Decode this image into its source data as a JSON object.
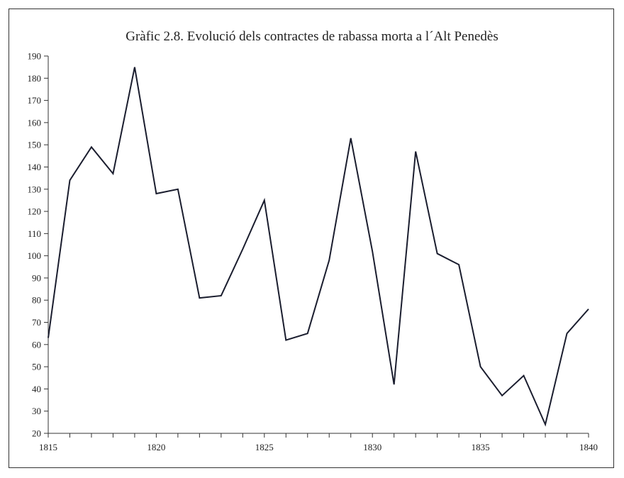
{
  "chart_data": {
    "type": "line",
    "title": "Gràfic 2.8. Evolució dels contractes de rabassa morta a l´Alt Penedès",
    "xlabel": "",
    "ylabel": "",
    "xlim": [
      1815,
      1840
    ],
    "ylim": [
      20,
      190
    ],
    "x_tick_labels": [
      "1815",
      "1820",
      "1825",
      "1830",
      "1835",
      "1840"
    ],
    "y_tick_labels": [
      "20",
      "30",
      "40",
      "50",
      "60",
      "70",
      "80",
      "90",
      "100",
      "110",
      "120",
      "130",
      "140",
      "150",
      "160",
      "170",
      "180",
      "190"
    ],
    "grid": false,
    "line_color": "#1a1d2e",
    "series": [
      {
        "x": [
          1815,
          1816,
          1817,
          1818,
          1819,
          1820,
          1821,
          1822,
          1823,
          1824,
          1825,
          1826,
          1827,
          1828,
          1829,
          1830,
          1831,
          1832,
          1833,
          1834,
          1835,
          1836,
          1837,
          1838,
          1839,
          1840
        ],
        "values": [
          63,
          134,
          149,
          137,
          185,
          128,
          130,
          81,
          82,
          103,
          125,
          62,
          65,
          98,
          153,
          102,
          42,
          147,
          101,
          96,
          50,
          37,
          46,
          24,
          65,
          76
        ]
      }
    ]
  }
}
